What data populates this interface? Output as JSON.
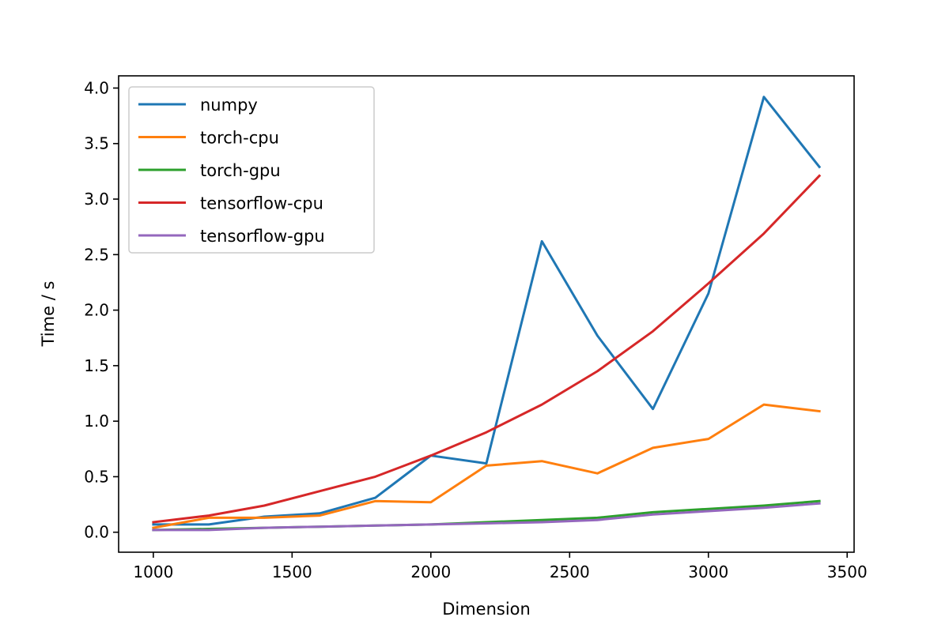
{
  "chart_data": {
    "type": "line",
    "title": "",
    "xlabel": "Dimension",
    "ylabel": "Time / s",
    "xlim": [
      875,
      3525
    ],
    "ylim": [
      -0.18,
      4.11
    ],
    "xticks": [
      1000,
      1500,
      2000,
      2500,
      3000,
      3500
    ],
    "yticks": [
      0.0,
      0.5,
      1.0,
      1.5,
      2.0,
      2.5,
      3.0,
      3.5,
      4.0
    ],
    "ytick_labels": [
      "0.0",
      "0.5",
      "1.0",
      "1.5",
      "2.0",
      "2.5",
      "3.0",
      "3.5",
      "4.0"
    ],
    "grid": false,
    "legend_position": "upper-left",
    "x": [
      1000,
      1200,
      1400,
      1600,
      1800,
      2000,
      2200,
      2400,
      2600,
      2800,
      3000,
      3200,
      3400
    ],
    "series": [
      {
        "name": "numpy",
        "color": "#1f77b4",
        "values": [
          0.07,
          0.07,
          0.14,
          0.17,
          0.31,
          0.69,
          0.62,
          2.62,
          1.77,
          1.11,
          2.15,
          3.92,
          3.29
        ]
      },
      {
        "name": "torch-cpu",
        "color": "#ff7f0e",
        "values": [
          0.04,
          0.13,
          0.13,
          0.15,
          0.28,
          0.27,
          0.6,
          0.64,
          0.53,
          0.76,
          0.84,
          1.15,
          1.09
        ]
      },
      {
        "name": "torch-gpu",
        "color": "#2ca02c",
        "values": [
          0.02,
          0.03,
          0.04,
          0.05,
          0.06,
          0.07,
          0.09,
          0.11,
          0.13,
          0.18,
          0.21,
          0.24,
          0.28
        ]
      },
      {
        "name": "tensorflow-cpu",
        "color": "#d62728",
        "values": [
          0.09,
          0.15,
          0.24,
          0.37,
          0.5,
          0.69,
          0.9,
          1.15,
          1.45,
          1.81,
          2.24,
          2.69,
          3.21
        ]
      },
      {
        "name": "tensorflow-gpu",
        "color": "#9467bd",
        "values": [
          0.02,
          0.02,
          0.04,
          0.05,
          0.06,
          0.07,
          0.08,
          0.09,
          0.11,
          0.16,
          0.19,
          0.22,
          0.26
        ]
      }
    ]
  }
}
